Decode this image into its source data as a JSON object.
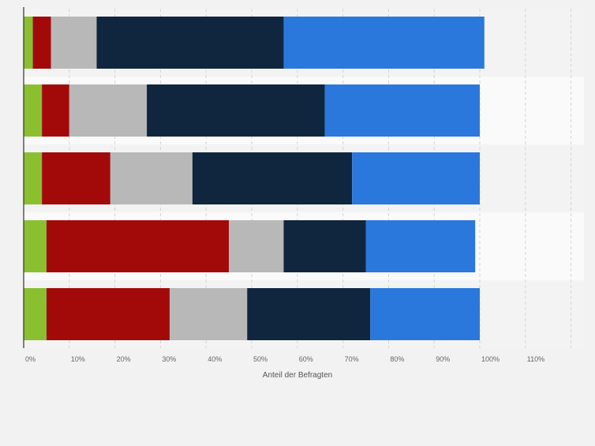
{
  "chart_data": {
    "type": "bar",
    "orientation": "horizontal",
    "stacked": true,
    "xlabel": "Anteil der Befragten",
    "ylabel": "",
    "xlim": [
      0,
      120
    ],
    "x_ticks": [
      0,
      10,
      20,
      30,
      40,
      50,
      60,
      70,
      80,
      90,
      100,
      110
    ],
    "x_tick_labels": [
      "0%",
      "10%",
      "20%",
      "30%",
      "40%",
      "50%",
      "60%",
      "70%",
      "80%",
      "90%",
      "100%",
      "110%"
    ],
    "grid": true,
    "categories": [
      "",
      "",
      "",
      "",
      ""
    ],
    "series": [
      {
        "color": "#8ac030",
        "values": [
          2,
          4,
          4,
          5,
          5
        ]
      },
      {
        "color": "#a20a0a",
        "values": [
          4,
          6,
          15,
          40,
          27
        ]
      },
      {
        "color": "#b8b8b8",
        "values": [
          10,
          17,
          18,
          12,
          17
        ]
      },
      {
        "color": "#10263e",
        "values": [
          41,
          39,
          35,
          18,
          27
        ]
      },
      {
        "color": "#2b78dd",
        "values": [
          44,
          34,
          28,
          24,
          24
        ]
      }
    ]
  }
}
